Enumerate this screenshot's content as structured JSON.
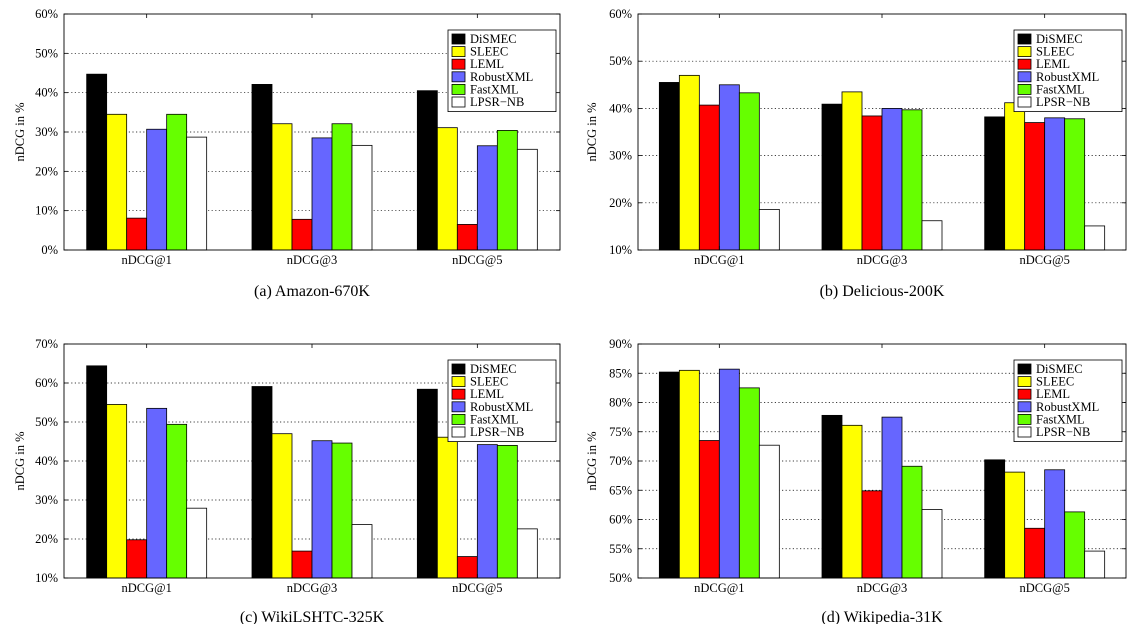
{
  "chart_data": [
    {
      "type": "bar",
      "title": "",
      "caption": "(a) Amazon-670K",
      "ylabel": "nDCG in %",
      "xlabel": "",
      "ylim": [
        0,
        60
      ],
      "yticks": [
        0,
        10,
        20,
        30,
        40,
        50,
        60
      ],
      "ytick_labels": [
        "0%",
        "10%",
        "20%",
        "30%",
        "40%",
        "50%",
        "60%"
      ],
      "grid": true,
      "legend": "top-right",
      "categories": [
        "nDCG@1",
        "nDCG@3",
        "nDCG@5"
      ],
      "series": [
        {
          "name": "DiSMEC",
          "color": "#000000",
          "values": [
            44.7,
            42.1,
            40.5
          ]
        },
        {
          "name": "SLEEC",
          "color": "#ffff00",
          "values": [
            34.5,
            32.1,
            31.1
          ]
        },
        {
          "name": "LEML",
          "color": "#ff0000",
          "values": [
            8.1,
            7.8,
            6.5
          ]
        },
        {
          "name": "RobustXML",
          "color": "#6666ff",
          "values": [
            30.7,
            28.5,
            26.5
          ]
        },
        {
          "name": "FastXML",
          "color": "#66ff00",
          "values": [
            34.5,
            32.1,
            30.4
          ]
        },
        {
          "name": "LPSR−NB",
          "color": "#ffffff",
          "values": [
            28.7,
            26.6,
            25.6
          ]
        }
      ]
    },
    {
      "type": "bar",
      "title": "",
      "caption": "(b) Delicious-200K",
      "ylabel": "nDCG in %",
      "xlabel": "",
      "ylim": [
        10,
        60
      ],
      "yticks": [
        10,
        20,
        30,
        40,
        50,
        60
      ],
      "ytick_labels": [
        "10%",
        "20%",
        "30%",
        "40%",
        "50%",
        "60%"
      ],
      "grid": true,
      "legend": "top-right",
      "categories": [
        "nDCG@1",
        "nDCG@3",
        "nDCG@5"
      ],
      "series": [
        {
          "name": "DiSMEC",
          "color": "#000000",
          "values": [
            45.5,
            40.9,
            38.2
          ]
        },
        {
          "name": "SLEEC",
          "color": "#ffff00",
          "values": [
            47.0,
            43.5,
            41.2
          ]
        },
        {
          "name": "LEML",
          "color": "#ff0000",
          "values": [
            40.7,
            38.4,
            37.0
          ]
        },
        {
          "name": "RobustXML",
          "color": "#6666ff",
          "values": [
            45.0,
            40.0,
            38.0
          ]
        },
        {
          "name": "FastXML",
          "color": "#66ff00",
          "values": [
            43.3,
            39.7,
            37.8
          ]
        },
        {
          "name": "LPSR−NB",
          "color": "#ffffff",
          "values": [
            18.6,
            16.2,
            15.1
          ]
        }
      ]
    },
    {
      "type": "bar",
      "title": "",
      "caption": "(c) WikiLSHTC-325K",
      "ylabel": "nDCG in %",
      "xlabel": "",
      "ylim": [
        10,
        70
      ],
      "yticks": [
        10,
        20,
        30,
        40,
        50,
        60,
        70
      ],
      "ytick_labels": [
        "10%",
        "20%",
        "30%",
        "40%",
        "50%",
        "60%",
        "70%"
      ],
      "grid": true,
      "legend": "top-right",
      "categories": [
        "nDCG@1",
        "nDCG@3",
        "nDCG@5"
      ],
      "series": [
        {
          "name": "DiSMEC",
          "color": "#000000",
          "values": [
            64.4,
            59.1,
            58.4
          ]
        },
        {
          "name": "SLEEC",
          "color": "#ffff00",
          "values": [
            54.5,
            47.0,
            46.1
          ]
        },
        {
          "name": "LEML",
          "color": "#ff0000",
          "values": [
            19.8,
            16.9,
            15.5
          ]
        },
        {
          "name": "RobustXML",
          "color": "#6666ff",
          "values": [
            53.5,
            45.2,
            44.2
          ]
        },
        {
          "name": "FastXML",
          "color": "#66ff00",
          "values": [
            49.4,
            44.6,
            44.0
          ]
        },
        {
          "name": "LPSR−NB",
          "color": "#ffffff",
          "values": [
            27.9,
            23.7,
            22.6
          ]
        }
      ]
    },
    {
      "type": "bar",
      "title": "",
      "caption": "(d) Wikipedia-31K",
      "ylabel": "nDCG in %",
      "xlabel": "",
      "ylim": [
        50,
        90
      ],
      "yticks": [
        50,
        55,
        60,
        65,
        70,
        75,
        80,
        85,
        90
      ],
      "ytick_labels": [
        "50%",
        "55%",
        "60%",
        "65%",
        "70%",
        "75%",
        "80%",
        "85%",
        "90%"
      ],
      "grid": true,
      "legend": "top-right",
      "categories": [
        "nDCG@1",
        "nDCG@3",
        "nDCG@5"
      ],
      "series": [
        {
          "name": "DiSMEC",
          "color": "#000000",
          "values": [
            85.2,
            77.8,
            70.2
          ]
        },
        {
          "name": "SLEEC",
          "color": "#ffff00",
          "values": [
            85.5,
            76.1,
            68.1
          ]
        },
        {
          "name": "LEML",
          "color": "#ff0000",
          "values": [
            73.5,
            64.9,
            58.5
          ]
        },
        {
          "name": "RobustXML",
          "color": "#6666ff",
          "values": [
            85.7,
            77.5,
            68.5
          ]
        },
        {
          "name": "FastXML",
          "color": "#66ff00",
          "values": [
            82.5,
            69.1,
            61.3
          ]
        },
        {
          "name": "LPSR−NB",
          "color": "#ffffff",
          "values": [
            72.7,
            61.7,
            54.6
          ]
        }
      ]
    }
  ]
}
